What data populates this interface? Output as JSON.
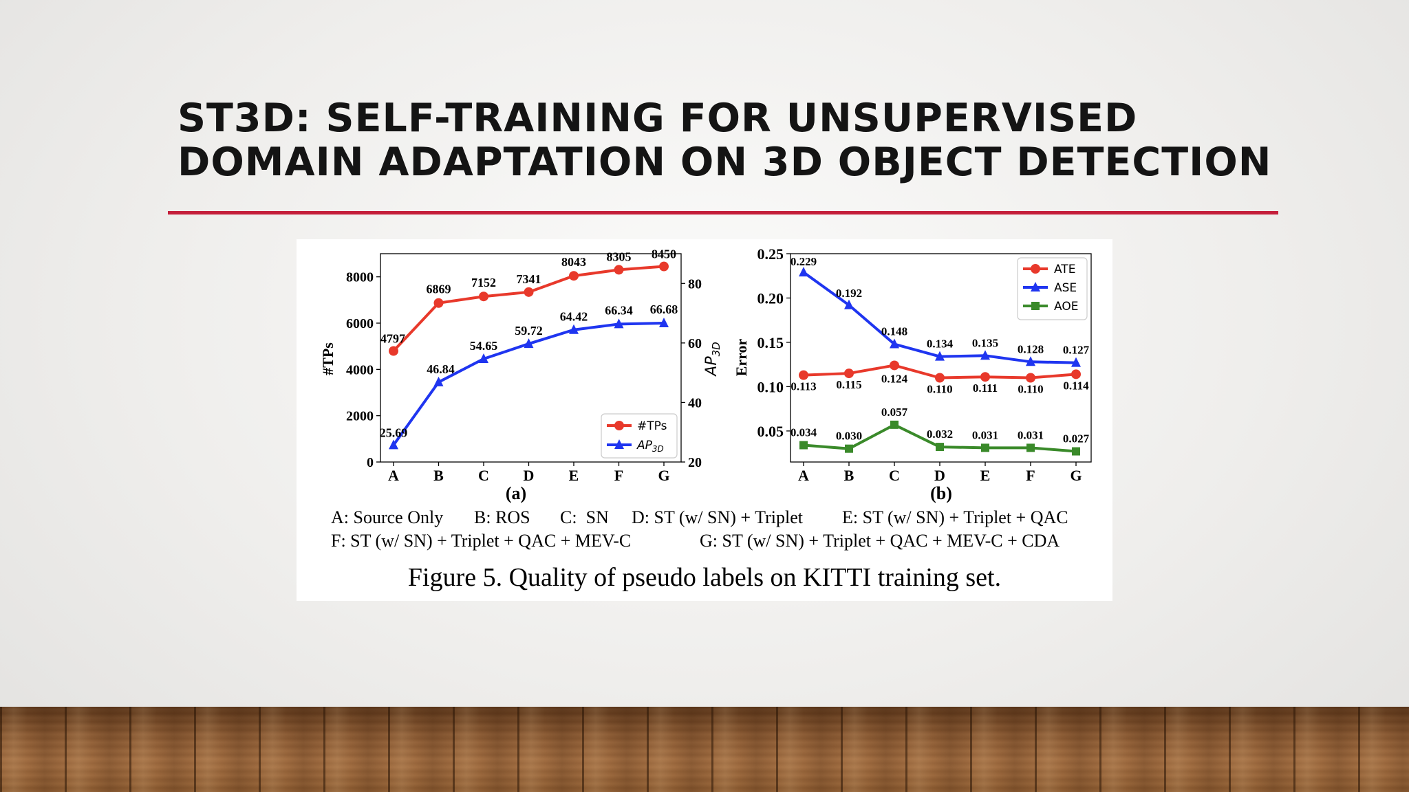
{
  "slide": {
    "title_line1": "ST3D: SELF-TRAINING FOR UNSUPERVISED",
    "title_line2": "DOMAIN ADAPTATION ON 3D OBJECT DETECTION",
    "accent_color": "#c41e3a"
  },
  "figure": {
    "caption": "Figure 5. Quality of pseudo labels on KITTI training set.",
    "legend_line1": [
      "A: Source Only",
      "B: ROS",
      "C:  SN",
      "D: ST (w/ SN) + Triplet",
      "E: ST (w/ SN) + Triplet + QAC"
    ],
    "legend_line2": [
      "F: ST (w/ SN) + Triplet + QAC + MEV-C",
      "G: ST (w/ SN) + Triplet + QAC + MEV-C + CDA"
    ]
  },
  "chart_data": [
    {
      "type": "line",
      "panel_label": "(a)",
      "categories": [
        "A",
        "B",
        "C",
        "D",
        "E",
        "F",
        "G"
      ],
      "ylabel": "#TPs",
      "ylim": [
        0,
        9000
      ],
      "yticks": [
        0,
        2000,
        4000,
        6000,
        8000
      ],
      "y2label": "AP3D",
      "y2lim": [
        20,
        90
      ],
      "y2ticks": [
        20,
        40,
        60,
        80
      ],
      "legend_position": "bottom-right",
      "series": [
        {
          "name": "#TPs",
          "axis": "left",
          "color": "#e8392b",
          "marker": "circle",
          "values": [
            4797,
            6869,
            7152,
            7341,
            8043,
            8305,
            8450
          ],
          "labels": [
            "4797",
            "6869",
            "7152",
            "7341",
            "8043",
            "8305",
            "8450"
          ]
        },
        {
          "name": "AP3D",
          "axis": "right",
          "color": "#1f35f0",
          "marker": "triangle",
          "values": [
            25.69,
            46.84,
            54.65,
            59.72,
            64.42,
            66.34,
            66.68
          ],
          "labels": [
            "25.69",
            "46.84",
            "54.65",
            "59.72",
            "64.42",
            "66.34",
            "66.68"
          ]
        }
      ]
    },
    {
      "type": "line",
      "panel_label": "(b)",
      "categories": [
        "A",
        "B",
        "C",
        "D",
        "E",
        "F",
        "G"
      ],
      "ylabel": "Error",
      "ylim": [
        0.015,
        0.25
      ],
      "yticks": [
        0.05,
        0.1,
        0.15,
        0.2,
        0.25
      ],
      "ytick_labels": [
        "0.05",
        "0.10",
        "0.15",
        "0.20",
        "0.25"
      ],
      "legend_position": "top-right",
      "series": [
        {
          "name": "ATE",
          "color": "#e8392b",
          "marker": "circle",
          "values": [
            0.113,
            0.115,
            0.124,
            0.11,
            0.111,
            0.11,
            0.114
          ],
          "labels": [
            "0.113",
            "0.115",
            "0.124",
            "0.110",
            "0.111",
            "0.110",
            "0.114"
          ]
        },
        {
          "name": "ASE",
          "color": "#1f35f0",
          "marker": "triangle",
          "values": [
            0.229,
            0.192,
            0.148,
            0.134,
            0.135,
            0.128,
            0.127
          ],
          "labels": [
            "0.229",
            "0.192",
            "0.148",
            "0.134",
            "0.135",
            "0.128",
            "0.127"
          ]
        },
        {
          "name": "AOE",
          "color": "#3a8a2a",
          "marker": "square",
          "values": [
            0.034,
            0.03,
            0.057,
            0.032,
            0.031,
            0.031,
            0.027
          ],
          "labels": [
            "0.034",
            "0.030",
            "0.057",
            "0.032",
            "0.031",
            "0.031",
            "0.027"
          ]
        }
      ]
    }
  ]
}
